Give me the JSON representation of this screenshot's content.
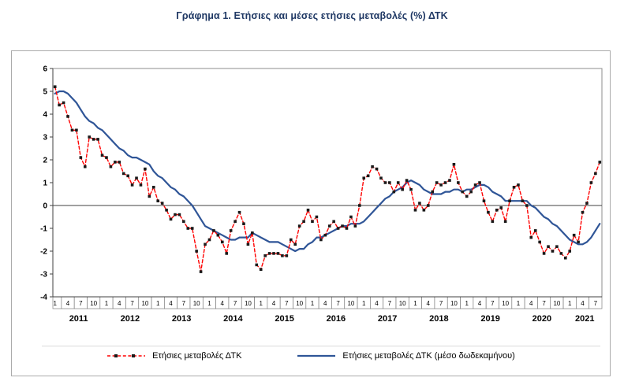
{
  "title": "Γράφημα 1. Ετήσιες και μέσες ετήσιες μεταβολές (%) ΔΤΚ",
  "chart_data": {
    "type": "line",
    "title": "Γράφημα 1. Ετήσιες και μέσες ετήσιες μεταβολές (%) ΔΤΚ",
    "xlabel": "",
    "ylabel": "",
    "ylim": [
      -4,
      6
    ],
    "y_ticks": [
      6,
      5,
      4,
      3,
      2,
      1,
      0,
      -1,
      -2,
      -3,
      -4
    ],
    "grid": false,
    "legend_position": "bottom",
    "x_start": "2011-01",
    "x_end": "2021-08",
    "x_years": [
      {
        "label": "2011",
        "month_ticks": [
          "1",
          "4",
          "7",
          "10"
        ]
      },
      {
        "label": "2012",
        "month_ticks": [
          "1",
          "4",
          "7",
          "10"
        ]
      },
      {
        "label": "2013",
        "month_ticks": [
          "1",
          "4",
          "7",
          "10"
        ]
      },
      {
        "label": "2014",
        "month_ticks": [
          "1",
          "4",
          "7",
          "10"
        ]
      },
      {
        "label": "2015",
        "month_ticks": [
          "1",
          "4",
          "7",
          "10"
        ]
      },
      {
        "label": "2016",
        "month_ticks": [
          "1",
          "4",
          "7",
          "10"
        ]
      },
      {
        "label": "2017",
        "month_ticks": [
          "1",
          "4",
          "7",
          "10"
        ]
      },
      {
        "label": "2018",
        "month_ticks": [
          "1",
          "4",
          "7",
          "10"
        ]
      },
      {
        "label": "2019",
        "month_ticks": [
          "1",
          "4",
          "7",
          "10"
        ]
      },
      {
        "label": "2020",
        "month_ticks": [
          "1",
          "4",
          "7",
          "10"
        ]
      },
      {
        "label": "2021",
        "month_ticks": [
          "1",
          "4",
          "7"
        ]
      }
    ],
    "series": [
      {
        "name": "Ετήσιες μεταβολές ΔΤΚ",
        "style": "dashed",
        "color": "#FF0000",
        "marker": "square",
        "marker_color": "#1a1a1a",
        "values": [
          5.2,
          4.4,
          4.5,
          3.9,
          3.3,
          3.3,
          2.1,
          1.7,
          3.0,
          2.9,
          2.9,
          2.2,
          2.1,
          1.7,
          1.9,
          1.9,
          1.4,
          1.3,
          0.9,
          1.2,
          0.9,
          1.6,
          0.4,
          0.8,
          0.2,
          0.1,
          -0.2,
          -0.6,
          -0.4,
          -0.4,
          -0.7,
          -1.0,
          -1.0,
          -2.0,
          -2.9,
          -1.7,
          -1.5,
          -1.1,
          -1.3,
          -1.6,
          -2.1,
          -1.1,
          -0.7,
          -0.3,
          -0.8,
          -1.7,
          -1.2,
          -2.6,
          -2.8,
          -2.2,
          -2.1,
          -2.1,
          -2.1,
          -2.2,
          -2.2,
          -1.5,
          -1.7,
          -0.9,
          -0.7,
          -0.2,
          -0.7,
          -0.5,
          -1.5,
          -1.3,
          -0.9,
          -0.7,
          -1.0,
          -0.9,
          -1.0,
          -0.5,
          -0.9,
          0.0,
          1.2,
          1.3,
          1.7,
          1.6,
          1.2,
          1.0,
          1.0,
          0.6,
          1.0,
          0.7,
          1.1,
          0.7,
          -0.2,
          0.1,
          -0.2,
          0.0,
          0.6,
          1.0,
          0.9,
          1.0,
          1.1,
          1.8,
          1.0,
          0.6,
          0.4,
          0.6,
          0.9,
          1.0,
          0.2,
          -0.3,
          -0.7,
          -0.2,
          -0.1,
          -0.7,
          0.2,
          0.8,
          0.9,
          0.2,
          0.0,
          -1.4,
          -1.1,
          -1.6,
          -2.1,
          -1.8,
          -2.0,
          -1.8,
          -2.1,
          -2.3,
          -2.0,
          -1.3,
          -1.6,
          -0.3,
          0.1,
          1.0,
          1.4,
          1.9
        ]
      },
      {
        "name": "Ετήσιες μεταβολές ΔΤΚ (μέσο δωδεκαμήνου)",
        "style": "solid",
        "color": "#2F5597",
        "marker": "none",
        "values": [
          4.9,
          5.0,
          5.0,
          4.9,
          4.7,
          4.5,
          4.2,
          3.9,
          3.7,
          3.6,
          3.4,
          3.3,
          3.1,
          2.9,
          2.7,
          2.5,
          2.4,
          2.2,
          2.1,
          2.1,
          2.0,
          1.9,
          1.8,
          1.5,
          1.3,
          1.2,
          1.0,
          0.8,
          0.7,
          0.5,
          0.4,
          0.2,
          0.0,
          -0.3,
          -0.6,
          -0.9,
          -1.0,
          -1.1,
          -1.2,
          -1.3,
          -1.4,
          -1.5,
          -1.5,
          -1.4,
          -1.4,
          -1.4,
          -1.2,
          -1.3,
          -1.4,
          -1.5,
          -1.6,
          -1.6,
          -1.6,
          -1.7,
          -1.8,
          -1.9,
          -2.0,
          -1.9,
          -1.9,
          -1.7,
          -1.6,
          -1.4,
          -1.4,
          -1.3,
          -1.2,
          -1.1,
          -1.0,
          -0.9,
          -0.9,
          -0.8,
          -0.8,
          -0.8,
          -0.7,
          -0.5,
          -0.3,
          -0.1,
          0.1,
          0.3,
          0.4,
          0.6,
          0.7,
          0.8,
          1.0,
          1.1,
          1.0,
          0.9,
          0.7,
          0.6,
          0.5,
          0.5,
          0.5,
          0.6,
          0.6,
          0.7,
          0.7,
          0.6,
          0.7,
          0.7,
          0.8,
          0.9,
          0.9,
          0.8,
          0.6,
          0.5,
          0.4,
          0.2,
          0.2,
          0.2,
          0.2,
          0.2,
          0.2,
          0.0,
          -0.1,
          -0.3,
          -0.5,
          -0.6,
          -0.8,
          -0.9,
          -1.1,
          -1.3,
          -1.5,
          -1.6,
          -1.7,
          -1.7,
          -1.6,
          -1.4,
          -1.1,
          -0.8
        ]
      }
    ]
  }
}
